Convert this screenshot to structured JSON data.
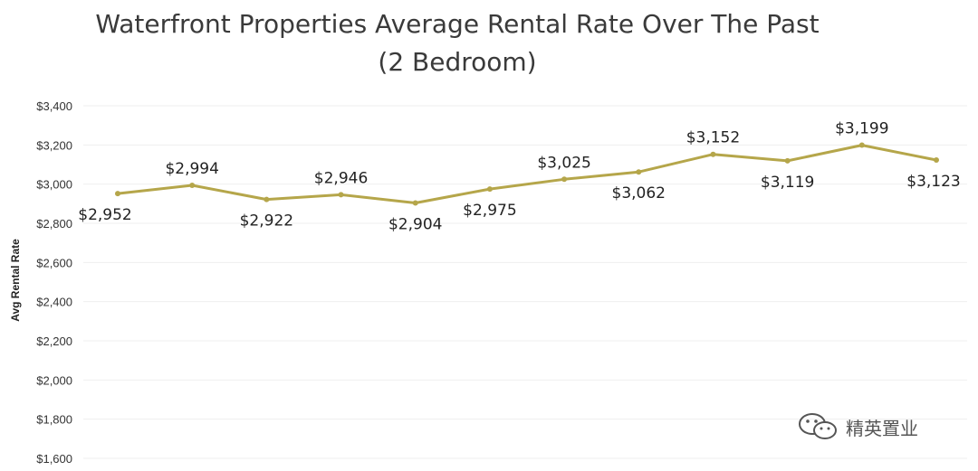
{
  "chart_data": {
    "type": "line",
    "title": "Waterfront Properties Average Rental Rate Over The Past",
    "subtitle": "(2 Bedroom)",
    "xlabel": "",
    "ylabel": "Avg Rental Rate",
    "ylim": [
      1600,
      3400
    ],
    "yticks": [
      1600,
      1800,
      2000,
      2200,
      2400,
      2600,
      2800,
      3000,
      3200,
      3400
    ],
    "ytick_labels": [
      "$1,600",
      "$1,800",
      "$2,000",
      "$2,200",
      "$2,400",
      "$2,600",
      "$2,800",
      "$3,000",
      "$3,200",
      "$3,400"
    ],
    "grid": true,
    "series": [
      {
        "color": "#b5a64a",
        "values": [
          2952,
          2994,
          2922,
          2946,
          2904,
          2975,
          3025,
          3062,
          3152,
          3119,
          3199,
          3123
        ],
        "labels": [
          "$2,952",
          "$2,994",
          "$2,922",
          "$2,946",
          "$2,904",
          "$2,975",
          "$3,025",
          "$3,062",
          "$3,152",
          "$3,119",
          "$3,199",
          "$3,123"
        ]
      }
    ]
  },
  "watermark": {
    "text": "精英置业",
    "icon": "wechat-icon"
  }
}
